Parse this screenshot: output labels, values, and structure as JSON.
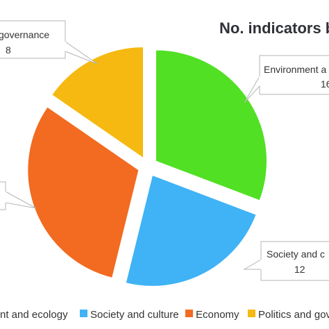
{
  "chart_data": {
    "type": "pie",
    "title": "No. indicators b",
    "slices": [
      {
        "label": "Environment a",
        "value": 16,
        "value_text": "16",
        "color": "#51e024"
      },
      {
        "label": "Society and c",
        "value": 12,
        "value_text": "12",
        "color": "#3fb3f5"
      },
      {
        "label": "",
        "value": 16,
        "value_text": "",
        "color": "#f26b21"
      },
      {
        "label": "governance",
        "value": 8,
        "value_text": "8",
        "color": "#f6b911"
      }
    ],
    "legend": {
      "placement": "bottom",
      "items": [
        {
          "label": "nt and ecology",
          "color": "#51e024"
        },
        {
          "label": "Society and culture",
          "color": "#3fb3f5"
        },
        {
          "label": "Economy",
          "color": "#f26b21"
        },
        {
          "label": "Politics and gov",
          "color": "#f6b911"
        }
      ]
    }
  }
}
